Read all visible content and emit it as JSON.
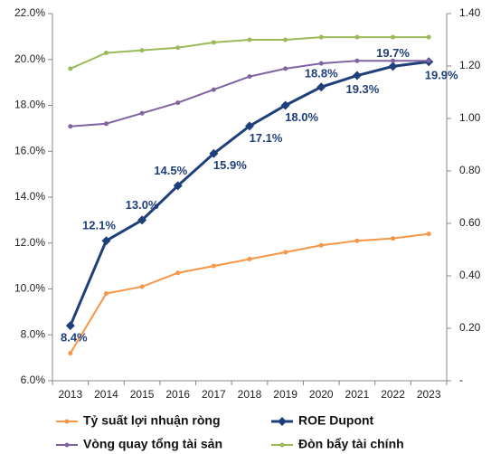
{
  "chart_data": {
    "type": "line",
    "categories": [
      "2013",
      "2014",
      "2015",
      "2016",
      "2017",
      "2018",
      "2019",
      "2020",
      "2021",
      "2022",
      "2023"
    ],
    "series": [
      {
        "name": "Tỷ suất lợi nhuận ròng",
        "color": "#f79646",
        "axis": "y",
        "marker": "circle",
        "values": [
          7.2,
          9.8,
          10.1,
          10.7,
          11.0,
          11.3,
          11.6,
          11.9,
          12.1,
          12.2,
          12.4
        ]
      },
      {
        "name": "ROE Dupont",
        "color": "#1f3f7a",
        "axis": "y",
        "marker": "diamond",
        "values": [
          8.4,
          12.1,
          13.0,
          14.5,
          15.9,
          17.1,
          18.0,
          18.8,
          19.3,
          19.7,
          19.9
        ],
        "value_labels": [
          "8.4%",
          "12.1%",
          "13.0%",
          "14.5%",
          "15.9%",
          "17.1%",
          "18.0%",
          "18.8%",
          "19.3%",
          "19.7%",
          "19.9%"
        ]
      },
      {
        "name": "Vòng quay tổng tài sản",
        "color": "#8064a2",
        "axis": "y2",
        "marker": "circle",
        "values": [
          0.97,
          0.98,
          1.02,
          1.06,
          1.11,
          1.16,
          1.19,
          1.21,
          1.22,
          1.22,
          1.22
        ]
      },
      {
        "name": "Đòn bẩy tài chính",
        "color": "#9bbb59",
        "axis": "y2",
        "marker": "circle",
        "values": [
          1.19,
          1.25,
          1.26,
          1.27,
          1.29,
          1.3,
          1.3,
          1.31,
          1.31,
          1.31,
          1.31
        ]
      }
    ],
    "ylim": [
      6,
      22
    ],
    "yticks": [
      {
        "value": 6,
        "label": "6.0%"
      },
      {
        "value": 8,
        "label": "8.0%"
      },
      {
        "value": 10,
        "label": "10.0%"
      },
      {
        "value": 12,
        "label": "12.0%"
      },
      {
        "value": 14,
        "label": "14.0%"
      },
      {
        "value": 16,
        "label": "16.0%"
      },
      {
        "value": 18,
        "label": "18.0%"
      },
      {
        "value": 20,
        "label": "20.0%"
      },
      {
        "value": 22,
        "label": "22.0%"
      }
    ],
    "y2lim": [
      0,
      1.4
    ],
    "y2ticks": [
      {
        "value": 0,
        "label": "-"
      },
      {
        "value": 0.2,
        "label": "0.20"
      },
      {
        "value": 0.4,
        "label": "0.40"
      },
      {
        "value": 0.6,
        "label": "0.60"
      },
      {
        "value": 0.8,
        "label": "0.80"
      },
      {
        "value": 1.0,
        "label": "1.00"
      },
      {
        "value": 1.2,
        "label": "1.20"
      },
      {
        "value": 1.4,
        "label": "1.40"
      }
    ],
    "legend": "bottom"
  }
}
